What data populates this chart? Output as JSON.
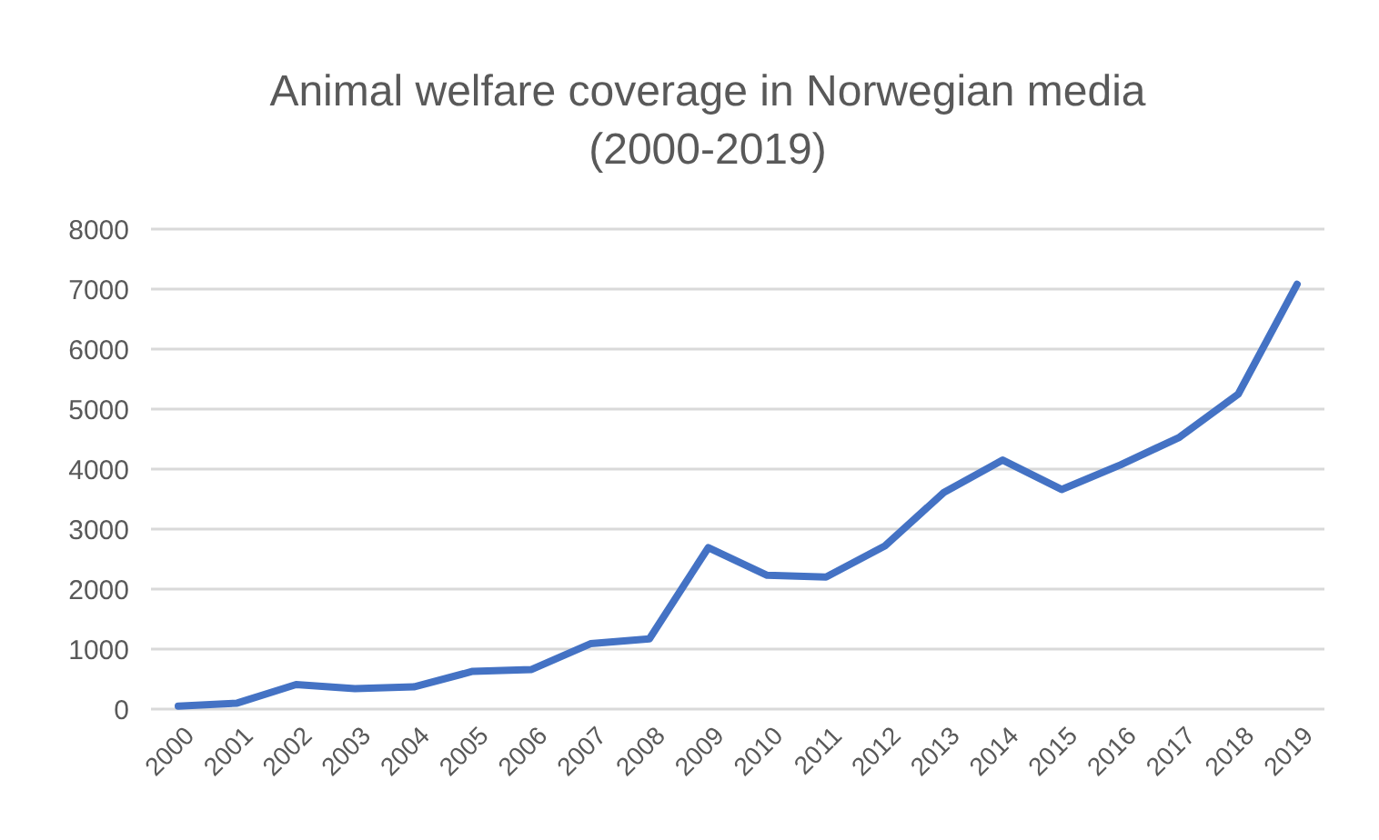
{
  "chart_data": {
    "type": "line",
    "title": "Animal welfare coverage in Norwegian media\n(2000-2019)",
    "categories": [
      "2000",
      "2001",
      "2002",
      "2003",
      "2004",
      "2005",
      "2006",
      "2007",
      "2008",
      "2009",
      "2010",
      "2011",
      "2012",
      "2013",
      "2014",
      "2015",
      "2016",
      "2017",
      "2018",
      "2019"
    ],
    "series": [
      {
        "color": "#4472c4",
        "values": [
          50,
          100,
          410,
          340,
          370,
          630,
          660,
          1090,
          1170,
          2690,
          2230,
          2200,
          2720,
          3610,
          4150,
          3660,
          4070,
          4530,
          5250,
          7080
        ]
      }
    ],
    "ylim": [
      0,
      8000
    ],
    "yticks": [
      0,
      1000,
      2000,
      3000,
      4000,
      5000,
      6000,
      7000,
      8000
    ],
    "grid": "y",
    "marker": "none",
    "line_style": "solid"
  }
}
